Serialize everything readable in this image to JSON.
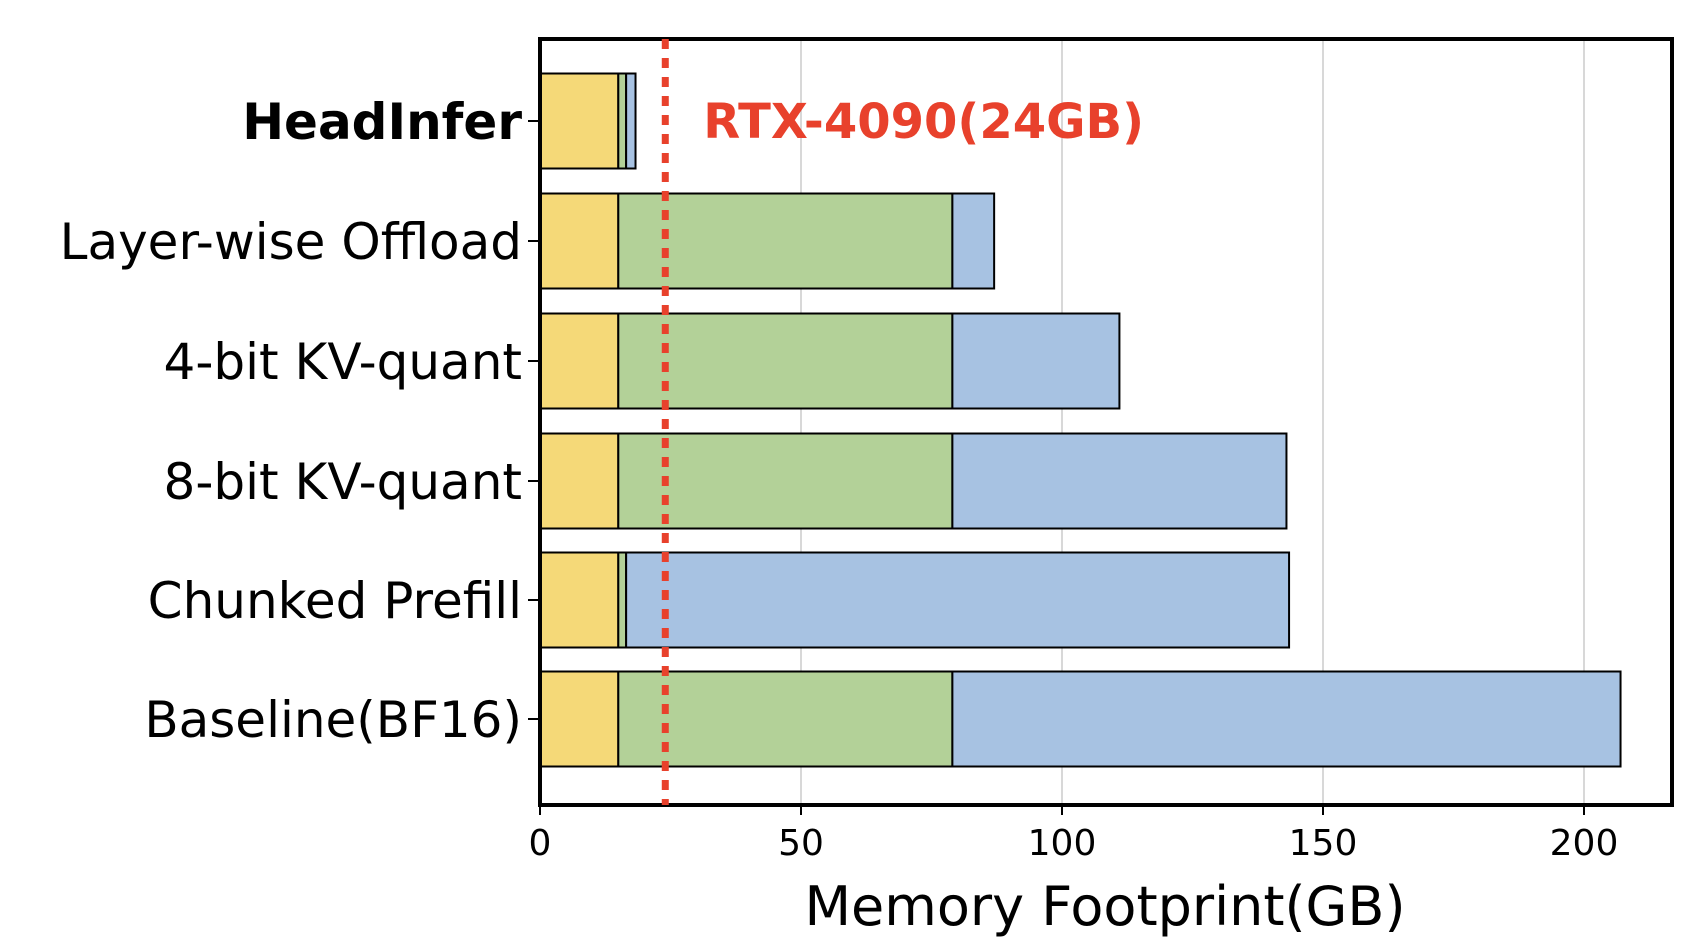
{
  "chart_data": {
    "type": "bar",
    "orientation": "horizontal",
    "stacked": true,
    "categories": [
      "HeadInfer",
      "Layer-wise Offload",
      "4-bit KV-quant",
      "8-bit KV-quant",
      "Chunked Prefill",
      "Baseline(BF16)"
    ],
    "bold_categories": [
      "HeadInfer"
    ],
    "series": [
      {
        "color": "#F5D978",
        "values": [
          15,
          15,
          15,
          15,
          15,
          15
        ]
      },
      {
        "color": "#B3D198",
        "values": [
          1.5,
          64,
          64,
          64,
          1.5,
          64
        ]
      },
      {
        "color": "#A7C2E2",
        "values": [
          1.8,
          8,
          32,
          64,
          127,
          128
        ]
      }
    ],
    "xlabel": "Memory Footprint(GB)",
    "ylabel": "",
    "xlim": [
      0,
      217
    ],
    "xticks": [
      "0",
      "50",
      "100",
      "150",
      "200"
    ],
    "grid": "vertical",
    "reference_line": {
      "value": 24,
      "label": "RTX-4090(24GB)",
      "color": "#E8412C",
      "style": "dotted"
    }
  }
}
